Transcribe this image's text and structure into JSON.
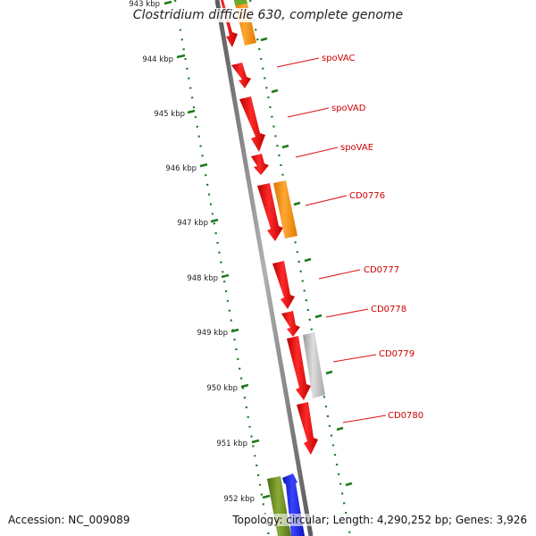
{
  "title": "Clostridium difficile 630, complete genome",
  "footer": {
    "accession": "Accession: NC_009089",
    "topology": "Topology: circular; Length: 4,290,252 bp; Genes: 3,926"
  },
  "colors": {
    "backbone": "#777777",
    "ruler": "#1a7a1a",
    "label_red": "#cc0000",
    "red_gene": "#ee1111",
    "orange_gene": "#f5940f",
    "gray_gene": "#bdbdbd",
    "olive_gene": "#6e8e22",
    "blue_gene": "#1520e6"
  },
  "scale": {
    "unit": "kbp",
    "ticks": [
      "943 kbp",
      "944 kbp",
      "945 kbp",
      "946 kbp",
      "947 kbp",
      "948 kbp",
      "949 kbp",
      "950 kbp",
      "951 kbp",
      "952 kbp"
    ]
  },
  "labeled_genes": [
    {
      "name": "spoVAC",
      "color": "#cc0000"
    },
    {
      "name": "spoVAD",
      "color": "#cc0000"
    },
    {
      "name": "spoVAE",
      "color": "#cc0000"
    },
    {
      "name": "CD0776",
      "color": "#cc0000"
    },
    {
      "name": "CD0777",
      "color": "#cc0000"
    },
    {
      "name": "CD0778",
      "color": "#cc0000"
    },
    {
      "name": "CD0779",
      "color": "#cc0000"
    },
    {
      "name": "CD0780",
      "color": "#cc0000"
    }
  ]
}
